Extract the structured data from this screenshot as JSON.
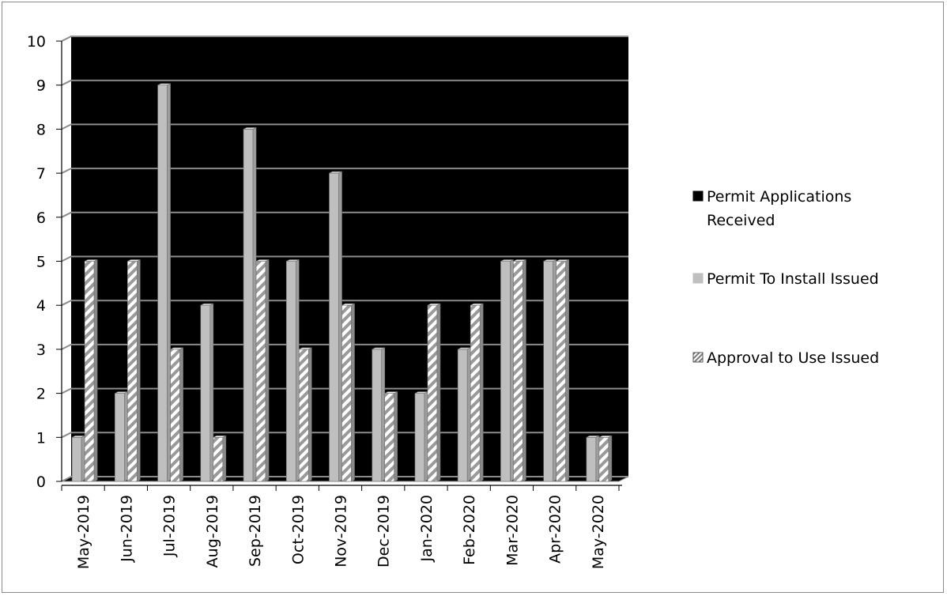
{
  "chart_data": {
    "type": "bar",
    "categories": [
      "May-2019",
      "Jun-2019",
      "Jul-2019",
      "Aug-2019",
      "Sep-2019",
      "Oct-2019",
      "Nov-2019",
      "Dec-2019",
      "Jan-2020",
      "Feb-2020",
      "Mar-2020",
      "Apr-2020",
      "May-2020"
    ],
    "series": [
      {
        "name": "Permit Applications Received",
        "legend_lines": [
          "Permit Applications",
          "Received"
        ],
        "values": [
          0,
          0,
          0,
          0,
          0,
          0,
          0,
          0,
          0,
          0,
          0,
          0,
          0
        ],
        "color": "#000000"
      },
      {
        "name": "Permit To Install Issued",
        "legend_lines": [
          "Permit To Install Issued"
        ],
        "values": [
          1,
          2,
          9,
          4,
          8,
          5,
          7,
          3,
          2,
          3,
          5,
          5,
          1
        ],
        "color": "#bfbfbf"
      },
      {
        "name": "Approval to Use Issued",
        "legend_lines": [
          "Approval to Use Issued"
        ],
        "values": [
          5,
          5,
          3,
          1,
          5,
          3,
          4,
          2,
          4,
          4,
          5,
          5,
          1
        ],
        "color": "#ffffff"
      }
    ],
    "yticks": [
      "0",
      "1",
      "2",
      "3",
      "4",
      "5",
      "6",
      "7",
      "8",
      "9",
      "10"
    ],
    "ylim": [
      0,
      10
    ],
    "grid": true,
    "legend_position": "right",
    "plot_background": "#000000"
  }
}
